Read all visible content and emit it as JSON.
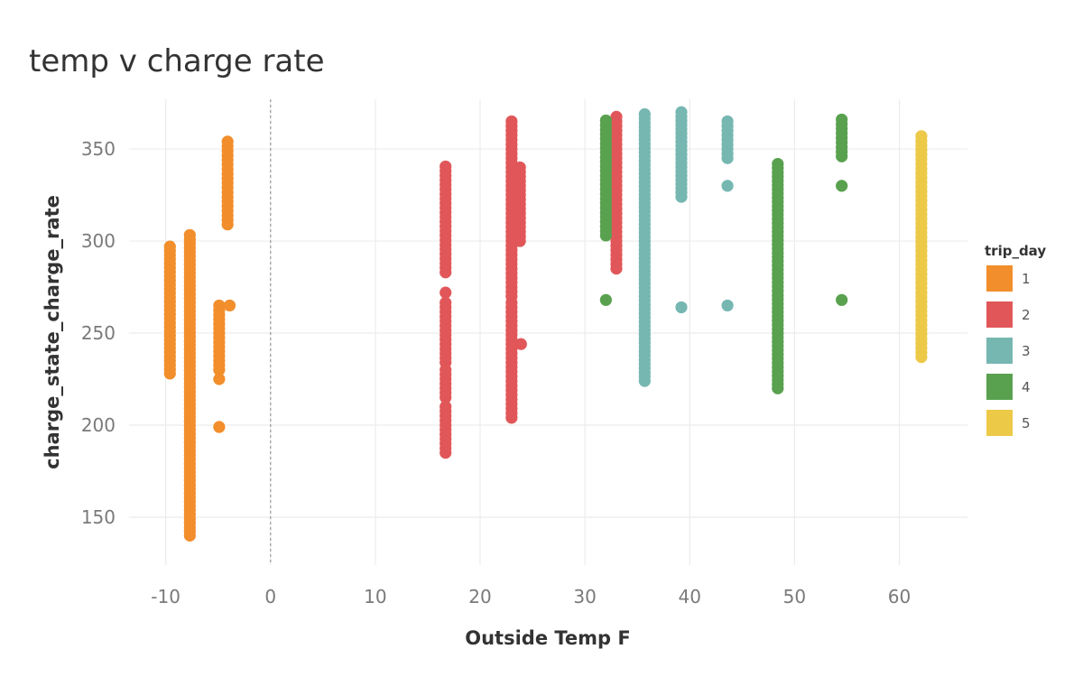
{
  "chart_data": {
    "type": "scatter",
    "title": "temp v charge rate",
    "xlabel": "Outside Temp F",
    "ylabel": "charge_state_charge_rate",
    "xlim": [
      -13.5,
      66.5
    ],
    "ylim": [
      124,
      377
    ],
    "x_ticks": [
      -10,
      0,
      10,
      20,
      30,
      40,
      50,
      60
    ],
    "y_ticks": [
      150,
      200,
      250,
      300,
      350
    ],
    "reference_line": {
      "axis": "x",
      "value": 0,
      "style": "dashed"
    },
    "grid": true,
    "legend": {
      "title": "trip_day",
      "position": "right"
    },
    "colors": {
      "1": "#f28e2b",
      "2": "#e15759",
      "3": "#76b7b2",
      "4": "#59a14f",
      "5": "#edc948"
    },
    "series": [
      {
        "name": "1",
        "key": "1",
        "color": "#f28e2b",
        "points": [
          {
            "x": -9.6,
            "range": [
              228,
              298
            ],
            "step": 2.3
          },
          {
            "x": -7.7,
            "range": [
              140,
              305
            ],
            "step": 2.3
          },
          {
            "x": -4.9,
            "range": [
              230,
              265
            ],
            "step": 2.5
          },
          {
            "x": -4.1,
            "range": [
              309,
              355
            ],
            "step": 2.5
          },
          {
            "x": -4.9,
            "y": 225
          },
          {
            "x": -4.9,
            "y": 199
          },
          {
            "x": -3.9,
            "y": 265
          }
        ]
      },
      {
        "name": "2",
        "key": "2",
        "color": "#e15759",
        "points": [
          {
            "x": 16.7,
            "range": [
              185,
              210
            ],
            "step": 2.5
          },
          {
            "x": 16.7,
            "range": [
              215,
              230
            ],
            "step": 2.5
          },
          {
            "x": 16.7,
            "range": [
              234,
              267
            ],
            "step": 2.5
          },
          {
            "x": 16.7,
            "y": 272
          },
          {
            "x": 16.7,
            "range": [
              283,
              342
            ],
            "step": 2.5
          },
          {
            "x": 23.0,
            "range": [
              204,
              268
            ],
            "step": 2.5
          },
          {
            "x": 23.0,
            "range": [
              270,
              365
            ],
            "step": 2.5
          },
          {
            "x": 23.8,
            "range": [
              300,
              342
            ],
            "step": 2.5
          },
          {
            "x": 23.9,
            "y": 244
          },
          {
            "x": 33.0,
            "range": [
              285,
              368
            ],
            "step": 2.5
          }
        ]
      },
      {
        "name": "3",
        "key": "3",
        "color": "#76b7b2",
        "points": [
          {
            "x": 35.7,
            "range": [
              224,
              371
            ],
            "step": 2.3
          },
          {
            "x": 39.2,
            "range": [
              324,
              370
            ],
            "step": 2.3
          },
          {
            "x": 43.6,
            "range": [
              345,
              366
            ],
            "step": 2.5
          },
          {
            "x": 43.6,
            "y": 330
          },
          {
            "x": 43.6,
            "y": 265
          },
          {
            "x": 39.2,
            "y": 264
          }
        ]
      },
      {
        "name": "4",
        "key": "4",
        "color": "#59a14f",
        "points": [
          {
            "x": 32.0,
            "range": [
              303,
              366
            ],
            "step": 2.5
          },
          {
            "x": 32.0,
            "y": 268
          },
          {
            "x": 48.4,
            "range": [
              220,
              343
            ],
            "step": 2.3
          },
          {
            "x": 54.5,
            "range": [
              346,
              366
            ],
            "step": 2.5
          },
          {
            "x": 54.5,
            "y": 330
          },
          {
            "x": 54.5,
            "y": 268
          }
        ]
      },
      {
        "name": "5",
        "key": "5",
        "color": "#edc948",
        "points": [
          {
            "x": 62.1,
            "range": [
              237,
              359
            ],
            "step": 2.5
          }
        ]
      }
    ]
  }
}
